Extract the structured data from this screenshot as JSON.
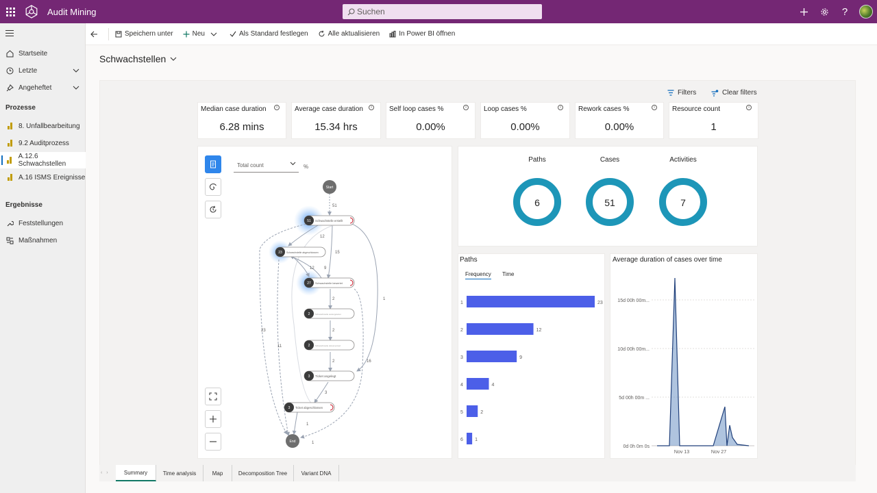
{
  "app": {
    "name": "Audit Mining",
    "search_placeholder": "Suchen"
  },
  "sidebar": {
    "items": [
      {
        "label": "Startseite",
        "icon": "home-icon"
      },
      {
        "label": "Letzte",
        "icon": "clock-icon"
      },
      {
        "label": "Angeheftet",
        "icon": "pin-icon"
      }
    ],
    "section_processes": "Prozesse",
    "processes": [
      {
        "label": "8. Unfallbearbeitung"
      },
      {
        "label": "9.2 Auditprozess"
      },
      {
        "label": "A.12.6 Schwachstellen",
        "active": true
      },
      {
        "label": "A.16 ISMS Ereignisse"
      }
    ],
    "section_results": "Ergebnisse",
    "results": [
      {
        "label": "Feststellungen",
        "icon": "wrench-icon"
      },
      {
        "label": "Maßnahmen",
        "icon": "tasks-icon"
      }
    ]
  },
  "commands": {
    "save_as": "Speichern unter",
    "new": "Neu",
    "set_default": "Als Standard festlegen",
    "refresh_all": "Alle aktualisieren",
    "open_powerbi": "In Power BI öffnen"
  },
  "page": {
    "title": "Schwachstellen"
  },
  "filters": {
    "filters_label": "Filters",
    "clear_label": "Clear filters"
  },
  "kpis": [
    {
      "label": "Median case duration",
      "value": "6.28 mins"
    },
    {
      "label": "Average case duration",
      "value": "15.34 hrs"
    },
    {
      "label": "Self loop cases %",
      "value": "0.00%"
    },
    {
      "label": "Loop cases %",
      "value": "0.00%"
    },
    {
      "label": "Rework cases %",
      "value": "0.00%"
    },
    {
      "label": "Resource count",
      "value": "1"
    }
  ],
  "map": {
    "dropdown": "Total count",
    "percent": "%",
    "start_label": "Start",
    "end_label": "End",
    "nodes": [
      {
        "count": "51",
        "name": "Schwachstelle erstellt"
      },
      {
        "count": "23",
        "name": "Schwachstelle abgeschlossen"
      },
      {
        "count": "27",
        "name": "Schwachstelle bewertet"
      },
      {
        "count": "2",
        "name": "Schwachstelle weitergeleitet"
      },
      {
        "count": "2",
        "name": "Schwachstelle dokumentiert"
      },
      {
        "count": "3",
        "name": "Ticket angelegt"
      },
      {
        "count": "3",
        "name": "Ticket abgeschlossen"
      }
    ],
    "edge_labels": [
      "51",
      "12",
      "15",
      "12",
      "9",
      "2",
      "2",
      "2",
      "3",
      "1",
      "1",
      "23",
      "11",
      "16",
      "1"
    ]
  },
  "donuts": [
    {
      "label": "Paths",
      "value": "6"
    },
    {
      "label": "Cases",
      "value": "51"
    },
    {
      "label": "Activities",
      "value": "7"
    }
  ],
  "paths_chart": {
    "title": "Paths",
    "tabs": [
      "Frequency",
      "Time"
    ],
    "chart_data": {
      "type": "bar",
      "orientation": "horizontal",
      "categories": [
        "1",
        "2",
        "3",
        "4",
        "5",
        "6"
      ],
      "values": [
        23,
        12,
        9,
        4,
        2,
        1
      ],
      "color": "#4c5fe8"
    }
  },
  "avg_chart": {
    "title": "Average duration of cases over time",
    "chart_data": {
      "type": "area",
      "y_ticks": [
        "0d 0h 0m 0s",
        "5d 00h 00m ...",
        "10d 00h 00m...",
        "15d 00h 00m..."
      ],
      "x_ticks": [
        "Nov 13",
        "Nov 27"
      ],
      "color": "#1f5f9f"
    }
  },
  "tabs": [
    "Summary",
    "Time analysis",
    "Map",
    "Decomposition Tree",
    "Variant DNA"
  ]
}
